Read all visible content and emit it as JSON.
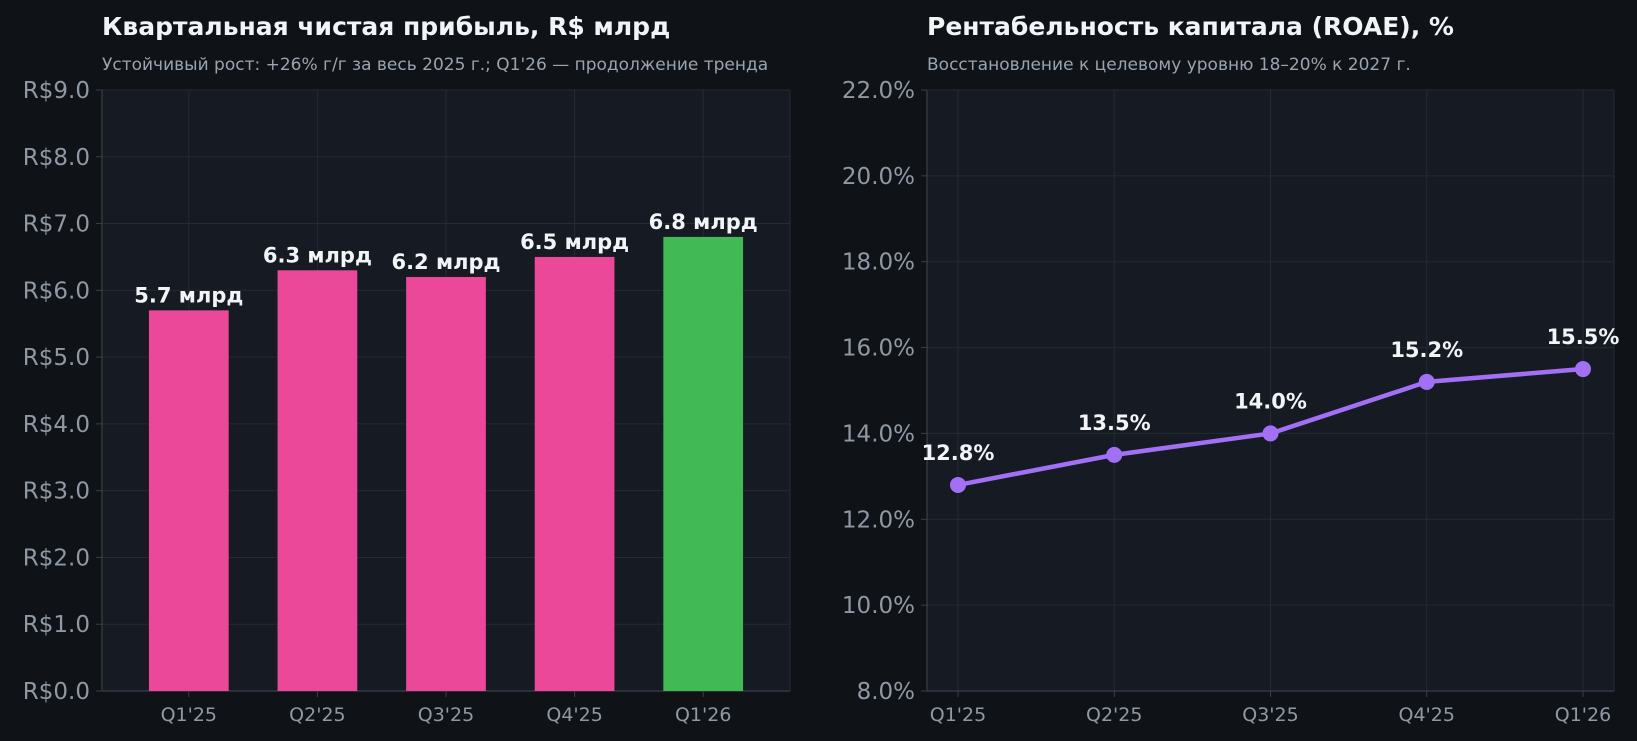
{
  "chart_data": [
    {
      "type": "bar",
      "title": "Квартальная чистая прибыль, R$ млрд",
      "subtitle": "Устойчивый рост: +26% г/г за весь 2025 г.; Q1'26 — продолжение тренда",
      "categories": [
        "Q1'25",
        "Q2'25",
        "Q3'25",
        "Q4'25",
        "Q1'26"
      ],
      "values": [
        5.7,
        6.3,
        6.2,
        6.5,
        6.8
      ],
      "data_labels": [
        "5.7 млрд",
        "6.3 млрд",
        "6.2 млрд",
        "6.5 млрд",
        "6.8 млрд"
      ],
      "bar_colors": [
        "#ec4899",
        "#ec4899",
        "#ec4899",
        "#ec4899",
        "#41b955"
      ],
      "ylim": [
        0,
        9
      ],
      "yticks": [
        0,
        1,
        2,
        3,
        4,
        5,
        6,
        7,
        8,
        9
      ],
      "ytick_labels": [
        "R$0.0",
        "R$1.0",
        "R$2.0",
        "R$3.0",
        "R$4.0",
        "R$5.0",
        "R$6.0",
        "R$7.0",
        "R$8.0",
        "R$9.0"
      ],
      "grid": true,
      "legend": "none"
    },
    {
      "type": "line",
      "title": "Рентабельность капитала (ROAE), %",
      "subtitle": "Восстановление к целевому уровню 18–20% к 2027 г.",
      "categories": [
        "Q1'25",
        "Q2'25",
        "Q3'25",
        "Q4'25",
        "Q1'26"
      ],
      "values": [
        12.8,
        13.5,
        14.0,
        15.2,
        15.5
      ],
      "data_labels": [
        "12.8%",
        "13.5%",
        "14.0%",
        "15.2%",
        "15.5%"
      ],
      "line_color": "#a270f5",
      "ylim": [
        8,
        22
      ],
      "yticks": [
        8,
        10,
        12,
        14,
        16,
        18,
        20,
        22
      ],
      "ytick_labels": [
        "8.0%",
        "10.0%",
        "12.0%",
        "14.0%",
        "16.0%",
        "18.0%",
        "20.0%",
        "22.0%"
      ],
      "grid": true,
      "legend": "none"
    }
  ],
  "colors": {
    "page_bg": "#0f1318",
    "plot_bg": "#161a22",
    "grid": "#252a33",
    "axis": "#3a3f48"
  }
}
